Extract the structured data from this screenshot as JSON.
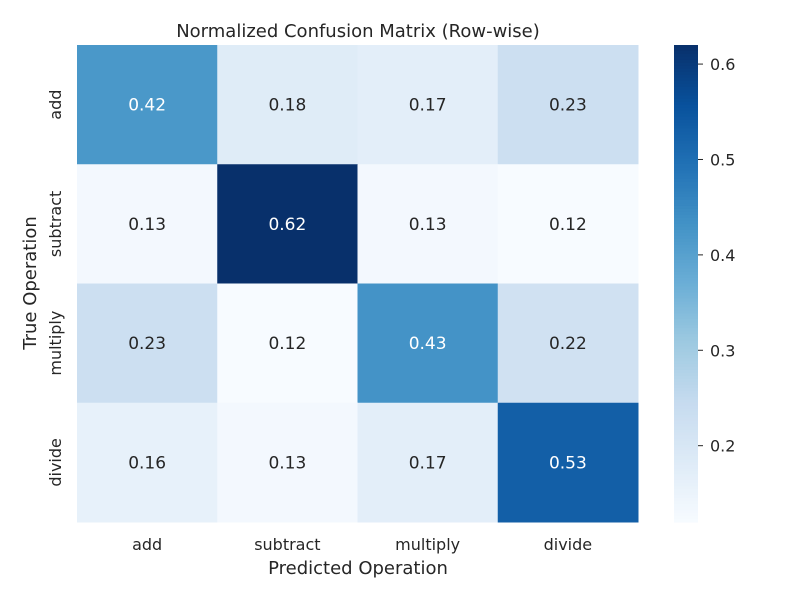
{
  "chart_data": {
    "type": "heatmap",
    "title": "Normalized Confusion Matrix (Row-wise)",
    "xlabel": "Predicted Operation",
    "ylabel": "True Operation",
    "x_categories": [
      "add",
      "subtract",
      "multiply",
      "divide"
    ],
    "y_categories": [
      "add",
      "subtract",
      "multiply",
      "divide"
    ],
    "values": [
      [
        0.42,
        0.18,
        0.17,
        0.23
      ],
      [
        0.13,
        0.62,
        0.13,
        0.12
      ],
      [
        0.23,
        0.12,
        0.43,
        0.22
      ],
      [
        0.16,
        0.13,
        0.17,
        0.53
      ]
    ],
    "value_labels": [
      [
        "0.42",
        "0.18",
        "0.17",
        "0.23"
      ],
      [
        "0.13",
        "0.62",
        "0.13",
        "0.12"
      ],
      [
        "0.23",
        "0.12",
        "0.43",
        "0.22"
      ],
      [
        "0.16",
        "0.13",
        "0.17",
        "0.53"
      ]
    ],
    "colormap": "Blues",
    "colorbar": {
      "vmin": 0.12,
      "vmax": 0.62,
      "ticks": [
        0.2,
        0.3,
        0.4,
        0.5,
        0.6
      ],
      "tick_labels": [
        "0.2",
        "0.3",
        "0.4",
        "0.5",
        "0.6"
      ]
    }
  }
}
